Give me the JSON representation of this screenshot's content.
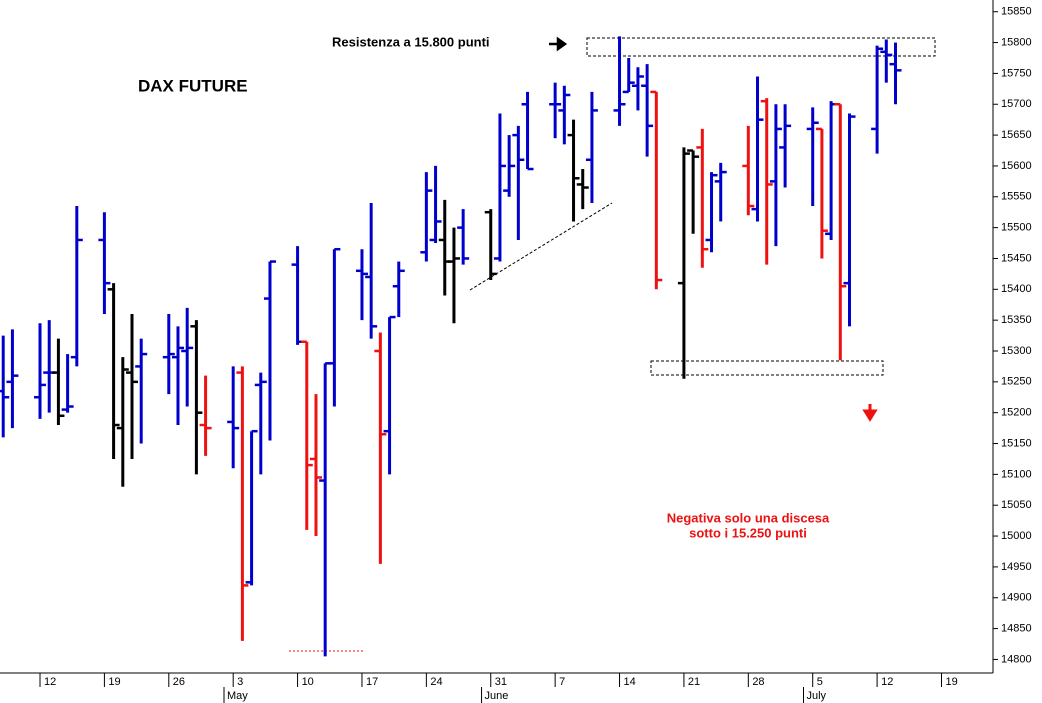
{
  "chart_data": {
    "type": "ohlc",
    "title": "DAX FUTURE",
    "annotations": {
      "resistance": "Resistenza a 15.800 punti",
      "note": [
        "Negativa solo una discesa",
        "sotto i 15.250 punti"
      ]
    },
    "x": [
      8,
      9,
      12,
      13,
      14,
      15,
      16,
      19,
      20,
      21,
      22,
      23,
      26,
      27,
      28,
      29,
      30,
      33,
      34,
      35,
      36,
      37,
      40,
      41,
      42,
      43,
      44,
      47,
      48,
      49,
      50,
      51,
      54,
      55,
      56,
      57,
      58,
      61,
      62,
      63,
      64,
      65,
      68,
      69,
      70,
      71,
      72,
      75,
      76,
      77,
      78,
      79,
      82,
      83,
      84,
      85,
      86,
      89,
      90,
      91,
      92,
      93,
      96,
      97,
      98,
      99,
      100,
      103,
      104,
      105
    ],
    "open": [
      15235,
      15250,
      15225,
      15265,
      15265,
      15205,
      15290,
      15480,
      15400,
      15175,
      15265,
      15275,
      15290,
      15290,
      15300,
      15340,
      15180,
      15185,
      15265,
      14925,
      15245,
      15385,
      15440,
      15315,
      15125,
      15090,
      15280,
      15430,
      15420,
      15300,
      15170,
      15405,
      15460,
      15480,
      15480,
      15445,
      15500,
      15525,
      15450,
      15560,
      15650,
      15700,
      15700,
      15690,
      15650,
      15570,
      15610,
      15690,
      15720,
      15730,
      15730,
      15720,
      15410,
      15625,
      15630,
      15480,
      15575,
      15600,
      15530,
      15705,
      15575,
      15630,
      15660,
      15660,
      15490,
      15700,
      15410,
      15660,
      15785,
      15765
    ],
    "high": [
      15325,
      15335,
      15345,
      15350,
      15320,
      15295,
      15535,
      15525,
      15410,
      15290,
      15360,
      15320,
      15360,
      15340,
      15370,
      15350,
      15260,
      15275,
      15275,
      15170,
      15265,
      15445,
      15470,
      15315,
      15230,
      15280,
      15465,
      15465,
      15540,
      15330,
      15355,
      15445,
      15590,
      15600,
      15545,
      15500,
      15530,
      15530,
      15685,
      15650,
      15665,
      15720,
      15735,
      15730,
      15675,
      15595,
      15720,
      15810,
      15775,
      15760,
      15765,
      15720,
      15630,
      15625,
      15660,
      15590,
      15605,
      15665,
      15745,
      15710,
      15700,
      15700,
      15695,
      15660,
      15705,
      15700,
      15685,
      15795,
      15805,
      15800
    ],
    "low": [
      15160,
      15175,
      15190,
      15200,
      15180,
      15200,
      15275,
      15360,
      15125,
      15080,
      15125,
      15150,
      15230,
      15180,
      15210,
      15100,
      15130,
      15110,
      14830,
      14920,
      15100,
      15155,
      15310,
      15010,
      15000,
      14805,
      15210,
      15350,
      15320,
      14955,
      15100,
      15355,
      15445,
      15475,
      15390,
      15345,
      15440,
      15415,
      15445,
      15550,
      15480,
      15595,
      15645,
      15635,
      15510,
      15530,
      15540,
      15665,
      15720,
      15690,
      15615,
      15400,
      15255,
      15490,
      15435,
      15460,
      15510,
      15520,
      15510,
      15440,
      15470,
      15565,
      15535,
      15450,
      15480,
      15285,
      15340,
      15620,
      15735,
      15700
    ],
    "close": [
      15225,
      15260,
      15245,
      15265,
      15195,
      15210,
      15480,
      15410,
      15180,
      15270,
      15250,
      15295,
      15295,
      15305,
      15305,
      15200,
      15175,
      15175,
      14920,
      15170,
      15250,
      15445,
      15315,
      15115,
      15095,
      15280,
      15465,
      15425,
      15340,
      15165,
      15355,
      15430,
      15560,
      15510,
      15445,
      15450,
      15450,
      15425,
      15600,
      15600,
      15610,
      15595,
      15700,
      15715,
      15580,
      15565,
      15690,
      15700,
      15735,
      15745,
      15665,
      15415,
      15620,
      15615,
      15465,
      15585,
      15590,
      15535,
      15675,
      15570,
      15660,
      15665,
      15670,
      15495,
      15700,
      15405,
      15680,
      15790,
      15780,
      15755
    ],
    "colors": [
      "#0000cc",
      "#0000cc",
      "#0000cc",
      "#0000cc",
      "#000000",
      "#0000cc",
      "#0000cc",
      "#0000cc",
      "#000000",
      "#000000",
      "#000000",
      "#0000cc",
      "#0000cc",
      "#0000cc",
      "#0000cc",
      "#000000",
      "#ee1111",
      "#0000cc",
      "#ee1111",
      "#0000cc",
      "#0000cc",
      "#0000cc",
      "#0000cc",
      "#ee1111",
      "#ee1111",
      "#0000cc",
      "#0000cc",
      "#0000cc",
      "#0000cc",
      "#ee1111",
      "#0000cc",
      "#0000cc",
      "#0000cc",
      "#0000cc",
      "#000000",
      "#000000",
      "#0000cc",
      "#000000",
      "#0000cc",
      "#0000cc",
      "#0000cc",
      "#0000cc",
      "#0000cc",
      "#0000cc",
      "#000000",
      "#000000",
      "#0000cc",
      "#0000cc",
      "#0000cc",
      "#0000cc",
      "#0000cc",
      "#ee1111",
      "#000000",
      "#000000",
      "#ee1111",
      "#0000cc",
      "#0000cc",
      "#ee1111",
      "#0000cc",
      "#ee1111",
      "#0000cc",
      "#0000cc",
      "#0000cc",
      "#ee1111",
      "#0000cc",
      "#ee1111",
      "#0000cc",
      "#0000cc",
      "#0000cc",
      "#0000cc"
    ],
    "xlim": [
      7.65,
      115.6
    ],
    "xticks": [
      {
        "value": 12,
        "label": "12"
      },
      {
        "value": 19,
        "label": "19"
      },
      {
        "value": 26,
        "label": "26"
      },
      {
        "value": 33,
        "label": "3"
      },
      {
        "value": 40,
        "label": "10"
      },
      {
        "value": 47,
        "label": "17"
      },
      {
        "value": 54,
        "label": "24"
      },
      {
        "value": 61,
        "label": "31"
      },
      {
        "value": 68,
        "label": "7"
      },
      {
        "value": 75,
        "label": "14"
      },
      {
        "value": 82,
        "label": "21"
      },
      {
        "value": 89,
        "label": "28"
      },
      {
        "value": 96,
        "label": "5"
      },
      {
        "value": 103,
        "label": "12"
      },
      {
        "value": 110,
        "label": "19"
      }
    ],
    "months": [
      {
        "value": 32,
        "label": "May"
      },
      {
        "value": 60,
        "label": "June"
      },
      {
        "value": 95,
        "label": "July"
      }
    ],
    "ylim": [
      14778,
      15869
    ],
    "yticks": [
      14800,
      14850,
      14900,
      14950,
      15000,
      15050,
      15100,
      15150,
      15200,
      15250,
      15300,
      15350,
      15400,
      15450,
      15500,
      15550,
      15600,
      15650,
      15700,
      15750,
      15800,
      15850
    ]
  }
}
